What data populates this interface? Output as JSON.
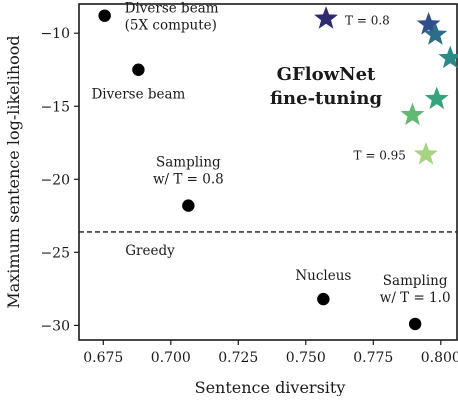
{
  "chart_data": {
    "type": "scatter",
    "xlabel": "Sentence diversity",
    "ylabel": "Maximum sentence log-likelihood",
    "xlim": [
      0.666,
      0.806
    ],
    "ylim": [
      -31,
      -8
    ],
    "xticks": [
      0.675,
      0.7,
      0.725,
      0.75,
      0.775,
      0.8
    ],
    "xtick_labels": [
      "0.675",
      "0.700",
      "0.725",
      "0.750",
      "0.775",
      "0.800"
    ],
    "yticks": [
      -10,
      -15,
      -20,
      -25,
      -30
    ],
    "ytick_labels": [
      "−10",
      "−15",
      "−20",
      "−25",
      "−30"
    ],
    "grid": false,
    "center_title": [
      "GFlowNet",
      "fine-tuning"
    ],
    "baselines": [
      {
        "label": [
          "Diverse beam",
          "(5X compute)"
        ],
        "x": 0.6755,
        "y": -8.8
      },
      {
        "label": [
          "Diverse beam"
        ],
        "x": 0.688,
        "y": -12.5
      },
      {
        "label": [
          "Sampling",
          "w/ T = 0.8"
        ],
        "x": 0.7065,
        "y": -21.8
      },
      {
        "label": [
          "Nucleus"
        ],
        "x": 0.7565,
        "y": -28.2
      },
      {
        "label": [
          "Sampling",
          "w/ T = 1.0"
        ],
        "x": 0.7905,
        "y": -29.9
      }
    ],
    "greedy": {
      "label": "Greedy",
      "y": -23.6
    },
    "gflownet": {
      "points": [
        {
          "x": 0.7575,
          "y": -9.0,
          "color": "#2e2a70"
        },
        {
          "x": 0.7955,
          "y": -9.4,
          "color": "#2e4f8a"
        },
        {
          "x": 0.798,
          "y": -10.1,
          "color": "#2c6d8a"
        },
        {
          "x": 0.8035,
          "y": -11.7,
          "color": "#2a8a86"
        },
        {
          "x": 0.7985,
          "y": -14.5,
          "color": "#35a37e"
        },
        {
          "x": 0.7895,
          "y": -15.6,
          "color": "#62b874"
        },
        {
          "x": 0.7945,
          "y": -18.3,
          "color": "#a8d383"
        }
      ],
      "temp_labels": [
        {
          "text": "T = 0.8",
          "point": 0
        },
        {
          "text": "T = 0.95",
          "point": 6
        }
      ]
    }
  }
}
